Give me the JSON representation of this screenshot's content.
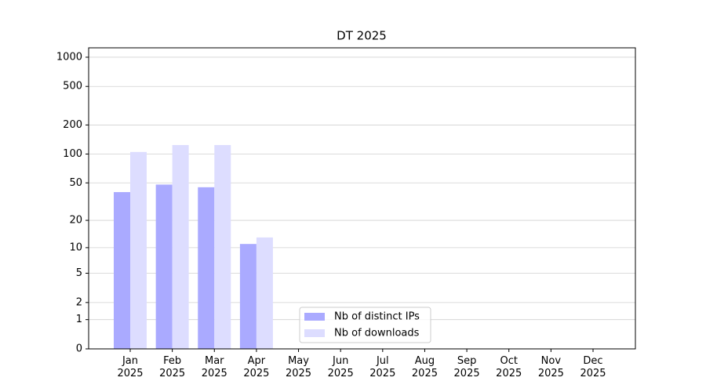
{
  "chart_data": {
    "type": "bar",
    "title": "DT 2025",
    "categories": [
      "Jan 2025",
      "Feb 2025",
      "Mar 2025",
      "Apr 2025",
      "May 2025",
      "Jun 2025",
      "Jul 2025",
      "Aug 2025",
      "Sep 2025",
      "Oct 2025",
      "Nov 2025",
      "Dec 2025"
    ],
    "series": [
      {
        "name": "Nb of distinct IPs",
        "color": "#aaaaff",
        "values": [
          40,
          48,
          45,
          11,
          null,
          null,
          null,
          null,
          null,
          null,
          null,
          null
        ]
      },
      {
        "name": "Nb of downloads",
        "color": "#ddddff",
        "values": [
          105,
          124,
          124,
          13,
          null,
          null,
          null,
          null,
          null,
          null,
          null,
          null
        ]
      }
    ],
    "yscale": "symlog",
    "ylim": [
      0,
      1249
    ],
    "yticks": [
      0,
      1,
      2,
      5,
      10,
      20,
      50,
      100,
      200,
      500,
      1000
    ],
    "grid": true,
    "legend": "lower center"
  }
}
